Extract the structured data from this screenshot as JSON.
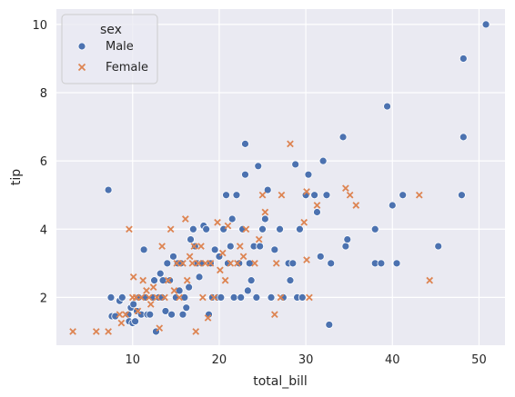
{
  "chart_data": {
    "type": "scatter",
    "xlabel": "total_bill",
    "ylabel": "tip",
    "xlim": [
      1.2,
      53.0
    ],
    "ylim": [
      0.6,
      10.45
    ],
    "xticks": [
      10,
      20,
      30,
      40,
      50
    ],
    "yticks": [
      2,
      4,
      6,
      8,
      10
    ],
    "grid": true,
    "legend": {
      "title": "sex",
      "placement": "top-left",
      "entries": [
        {
          "label": "Male",
          "marker": "circle",
          "color": "#4c72b0"
        },
        {
          "label": "Female",
          "marker": "x",
          "color": "#dd8452"
        }
      ]
    },
    "series": [
      {
        "name": "Male",
        "marker": "circle",
        "color": "#4c72b0",
        "points": [
          [
            7.2,
            5.15
          ],
          [
            7.5,
            2.0
          ],
          [
            7.6,
            1.45
          ],
          [
            8.0,
            1.45
          ],
          [
            8.5,
            1.9
          ],
          [
            8.8,
            2.0
          ],
          [
            9.5,
            1.5
          ],
          [
            9.6,
            1.3
          ],
          [
            9.8,
            1.7
          ],
          [
            10.0,
            1.25
          ],
          [
            10.1,
            1.8
          ],
          [
            10.3,
            1.3
          ],
          [
            10.5,
            1.6
          ],
          [
            10.7,
            2.0
          ],
          [
            11.0,
            1.5
          ],
          [
            11.3,
            3.4
          ],
          [
            11.5,
            2.0
          ],
          [
            11.7,
            1.5
          ],
          [
            12.0,
            1.5
          ],
          [
            12.3,
            2.0
          ],
          [
            12.5,
            2.5
          ],
          [
            12.7,
            1.0
          ],
          [
            13.0,
            2.0
          ],
          [
            13.2,
            2.7
          ],
          [
            13.4,
            2.0
          ],
          [
            13.5,
            2.5
          ],
          [
            13.8,
            1.6
          ],
          [
            14.0,
            3.0
          ],
          [
            14.3,
            2.5
          ],
          [
            14.5,
            1.5
          ],
          [
            14.7,
            3.2
          ],
          [
            15.0,
            2.0
          ],
          [
            15.2,
            3.0
          ],
          [
            15.4,
            2.2
          ],
          [
            15.6,
            3.0
          ],
          [
            15.8,
            1.5
          ],
          [
            16.0,
            2.0
          ],
          [
            16.2,
            1.7
          ],
          [
            16.5,
            2.3
          ],
          [
            16.7,
            3.7
          ],
          [
            17.0,
            4.0
          ],
          [
            17.2,
            3.5
          ],
          [
            17.5,
            3.0
          ],
          [
            17.7,
            2.6
          ],
          [
            18.0,
            3.0
          ],
          [
            18.2,
            4.1
          ],
          [
            18.5,
            4.0
          ],
          [
            18.8,
            1.5
          ],
          [
            19.0,
            3.0
          ],
          [
            19.2,
            2.0
          ],
          [
            19.5,
            3.4
          ],
          [
            19.8,
            2.0
          ],
          [
            20.0,
            3.2
          ],
          [
            20.2,
            2.0
          ],
          [
            20.5,
            4.0
          ],
          [
            20.8,
            5.0
          ],
          [
            21.0,
            3.0
          ],
          [
            21.3,
            3.5
          ],
          [
            21.5,
            4.3
          ],
          [
            21.7,
            2.0
          ],
          [
            22.0,
            5.0
          ],
          [
            22.3,
            3.0
          ],
          [
            22.5,
            2.0
          ],
          [
            22.7,
            4.0
          ],
          [
            23.0,
            5.6
          ],
          [
            23.0,
            6.5
          ],
          [
            23.3,
            2.2
          ],
          [
            23.5,
            3.0
          ],
          [
            23.7,
            2.5
          ],
          [
            24.0,
            3.5
          ],
          [
            24.3,
            2.0
          ],
          [
            24.5,
            5.85
          ],
          [
            24.7,
            3.5
          ],
          [
            25.0,
            4.0
          ],
          [
            25.3,
            4.3
          ],
          [
            25.6,
            5.15
          ],
          [
            26.0,
            2.0
          ],
          [
            26.4,
            3.4
          ],
          [
            27.0,
            4.0
          ],
          [
            27.4,
            2.0
          ],
          [
            28.0,
            3.0
          ],
          [
            28.2,
            2.5
          ],
          [
            28.5,
            3.0
          ],
          [
            28.8,
            5.9
          ],
          [
            29.0,
            2.0
          ],
          [
            29.3,
            4.0
          ],
          [
            29.6,
            2.0
          ],
          [
            30.0,
            5.0
          ],
          [
            30.3,
            5.6
          ],
          [
            31.0,
            5.0
          ],
          [
            31.3,
            4.5
          ],
          [
            31.7,
            3.2
          ],
          [
            32.0,
            6.0
          ],
          [
            32.4,
            5.0
          ],
          [
            32.7,
            1.2
          ],
          [
            32.9,
            3.0
          ],
          [
            34.3,
            6.7
          ],
          [
            34.6,
            3.5
          ],
          [
            34.8,
            3.7
          ],
          [
            38.0,
            4.0
          ],
          [
            38.0,
            3.0
          ],
          [
            38.7,
            3.0
          ],
          [
            39.4,
            7.6
          ],
          [
            40.0,
            4.7
          ],
          [
            40.5,
            3.0
          ],
          [
            41.2,
            5.0
          ],
          [
            45.3,
            3.5
          ],
          [
            48.2,
            9.0
          ],
          [
            48.2,
            6.7
          ],
          [
            48.0,
            5.0
          ],
          [
            50.8,
            10.0
          ]
        ]
      },
      {
        "name": "Female",
        "marker": "x",
        "color": "#dd8452",
        "points": [
          [
            3.1,
            1.0
          ],
          [
            5.8,
            1.0
          ],
          [
            7.2,
            1.0
          ],
          [
            8.5,
            1.5
          ],
          [
            8.7,
            1.25
          ],
          [
            9.2,
            1.5
          ],
          [
            9.6,
            4.0
          ],
          [
            10.0,
            2.0
          ],
          [
            10.1,
            2.6
          ],
          [
            10.4,
            2.0
          ],
          [
            10.6,
            1.6
          ],
          [
            11.0,
            2.0
          ],
          [
            11.2,
            2.5
          ],
          [
            11.6,
            2.2
          ],
          [
            11.9,
            2.0
          ],
          [
            12.1,
            1.8
          ],
          [
            12.4,
            2.3
          ],
          [
            12.8,
            2.0
          ],
          [
            13.1,
            1.1
          ],
          [
            13.4,
            3.5
          ],
          [
            13.7,
            2.0
          ],
          [
            14.1,
            2.5
          ],
          [
            14.4,
            4.0
          ],
          [
            14.8,
            2.2
          ],
          [
            15.1,
            3.0
          ],
          [
            15.4,
            2.0
          ],
          [
            15.8,
            3.0
          ],
          [
            16.1,
            4.3
          ],
          [
            16.3,
            2.5
          ],
          [
            16.6,
            3.2
          ],
          [
            16.9,
            3.0
          ],
          [
            17.1,
            3.5
          ],
          [
            17.3,
            1.0
          ],
          [
            17.6,
            3.0
          ],
          [
            17.9,
            3.5
          ],
          [
            18.1,
            2.0
          ],
          [
            18.4,
            3.0
          ],
          [
            18.7,
            1.4
          ],
          [
            19.0,
            3.0
          ],
          [
            19.4,
            2.0
          ],
          [
            19.8,
            4.2
          ],
          [
            20.1,
            2.8
          ],
          [
            20.4,
            3.3
          ],
          [
            20.7,
            2.5
          ],
          [
            21.0,
            4.1
          ],
          [
            21.3,
            3.0
          ],
          [
            22.1,
            3.0
          ],
          [
            22.4,
            3.5
          ],
          [
            22.8,
            3.2
          ],
          [
            23.1,
            4.0
          ],
          [
            24.1,
            3.0
          ],
          [
            24.6,
            3.7
          ],
          [
            25.0,
            5.0
          ],
          [
            25.3,
            4.5
          ],
          [
            26.4,
            1.5
          ],
          [
            26.6,
            3.0
          ],
          [
            27.1,
            2.0
          ],
          [
            27.2,
            5.0
          ],
          [
            28.2,
            6.5
          ],
          [
            29.8,
            4.2
          ],
          [
            30.1,
            5.1
          ],
          [
            30.4,
            2.0
          ],
          [
            30.1,
            3.1
          ],
          [
            31.3,
            4.7
          ],
          [
            34.6,
            5.2
          ],
          [
            35.1,
            5.0
          ],
          [
            35.8,
            4.7
          ],
          [
            43.1,
            5.0
          ],
          [
            44.3,
            2.5
          ]
        ]
      }
    ]
  }
}
